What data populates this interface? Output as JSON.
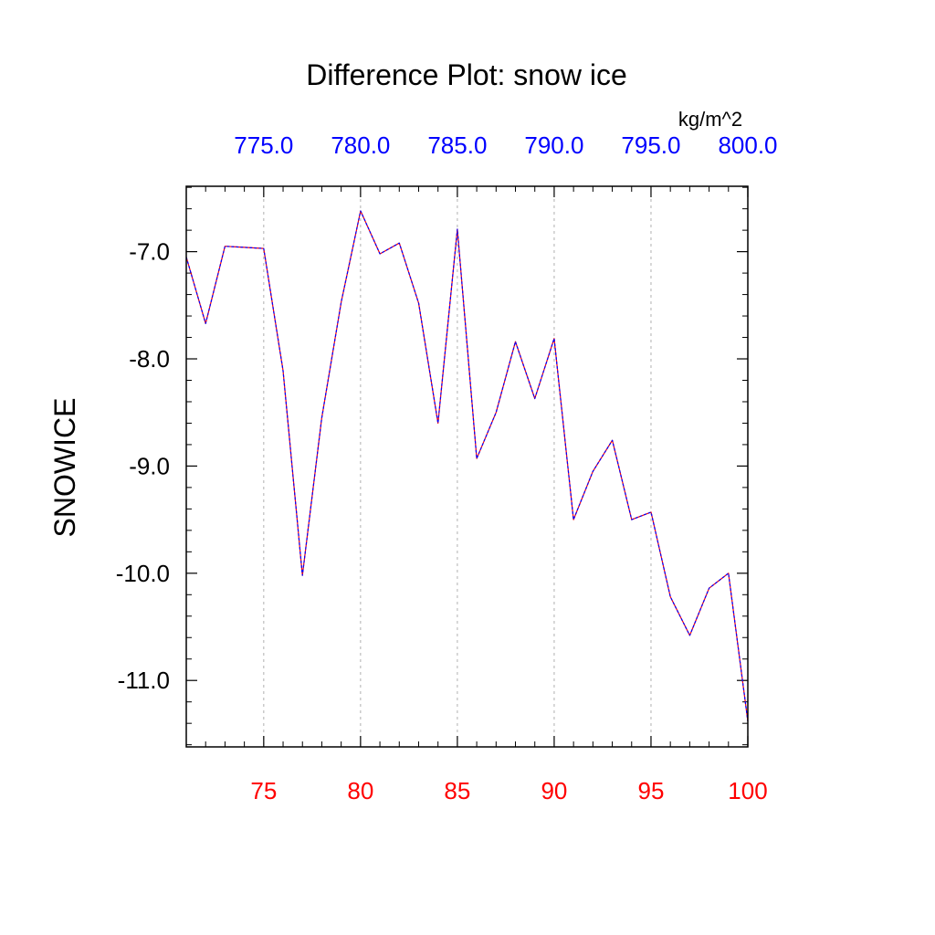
{
  "chart_data": {
    "type": "line",
    "title": "Difference Plot: snow ice",
    "ylabel": "SNOWICE",
    "units_label": "kg/m^2",
    "xlim": [
      71,
      100
    ],
    "ylim": [
      -11.62,
      -6.39
    ],
    "x": [
      71,
      72,
      73,
      74,
      75,
      76,
      77,
      78,
      79,
      80,
      81,
      82,
      83,
      84,
      85,
      86,
      87,
      88,
      89,
      90,
      91,
      92,
      93,
      94,
      95,
      96,
      97,
      98,
      99,
      100
    ],
    "series": [
      {
        "values": [
          -7.05,
          -7.67,
          -6.95,
          -6.96,
          -6.97,
          -8.11,
          -10.02,
          -8.55,
          -7.47,
          -6.62,
          -7.02,
          -6.92,
          -7.48,
          -8.6,
          -6.79,
          -8.93,
          -8.5,
          -7.84,
          -8.37,
          -7.81,
          -9.5,
          -9.05,
          -8.76,
          -9.5,
          -9.43,
          -10.22,
          -10.58,
          -10.14,
          -10.0,
          -11.38
        ],
        "color": "#ff0000",
        "overlay_color": "#0000ff"
      }
    ],
    "bottom_axis": {
      "ticks": [
        75,
        80,
        85,
        90,
        95,
        100
      ],
      "labels": [
        "75",
        "80",
        "85",
        "90",
        "95",
        "100"
      ],
      "color": "#ff0000"
    },
    "top_axis": {
      "ticks": [
        75,
        80,
        85,
        90,
        95,
        100
      ],
      "labels": [
        "775.0",
        "780.0",
        "785.0",
        "790.0",
        "795.0",
        "800.0"
      ],
      "color": "#0000ff"
    },
    "y_axis": {
      "ticks": [
        -7,
        -8,
        -9,
        -10,
        -11
      ],
      "labels": [
        "-7.0",
        "-8.0",
        "-9.0",
        "-10.0",
        "-11.0"
      ]
    },
    "vertical_gridlines": [
      75,
      80,
      85,
      90,
      95
    ]
  }
}
